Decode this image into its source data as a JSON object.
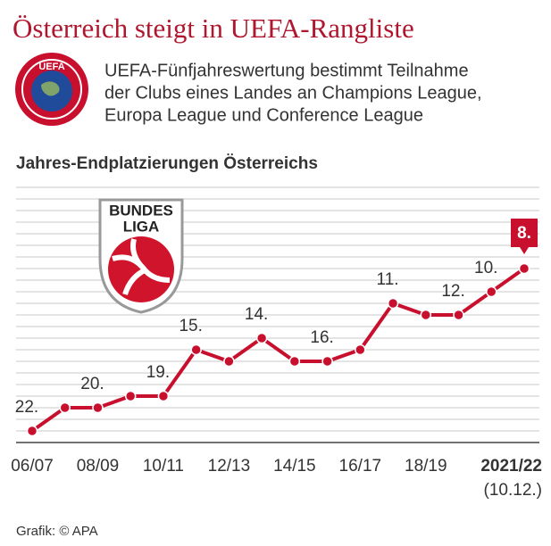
{
  "header": {
    "title": "Österreich steigt in UEFA-Rangliste",
    "logo_text": "UEFA",
    "description": [
      "UEFA-Fünfjahreswertung bestimmt Teilnahme",
      "der Clubs eines Landes an Champions League,",
      "Europa League und Conference League"
    ]
  },
  "chart_data": {
    "type": "line",
    "title": "Jahres-Endplatzierungen Österreichs",
    "logo_text": [
      "BUNDES",
      "LIGA"
    ],
    "categories": [
      "06/07",
      null,
      "08/09",
      null,
      "10/11",
      null,
      "12/13",
      null,
      "14/15",
      null,
      "16/17",
      null,
      "18/19",
      null,
      null,
      "2021/22"
    ],
    "category_note": "(10.12.)",
    "series": [
      {
        "name": "Österreich",
        "color": "#c8102e",
        "values": [
          22,
          20,
          20,
          19,
          19,
          15,
          16,
          14,
          16,
          16,
          15,
          11,
          12,
          12,
          10,
          8
        ],
        "value_labels": [
          "22.",
          null,
          "20.",
          null,
          "19.",
          "15.",
          null,
          "14.",
          null,
          "16.",
          null,
          "11.",
          null,
          "12.",
          "10.",
          "8."
        ]
      }
    ],
    "ylim": [
      23,
      1
    ],
    "yticks": [
      1,
      2,
      3,
      4,
      5,
      6,
      7,
      8,
      9,
      10,
      11,
      12,
      13,
      14,
      15,
      16,
      17,
      18,
      19,
      20,
      21,
      22,
      23
    ],
    "grid": true
  },
  "footer": {
    "source": "Grafik: © APA"
  }
}
